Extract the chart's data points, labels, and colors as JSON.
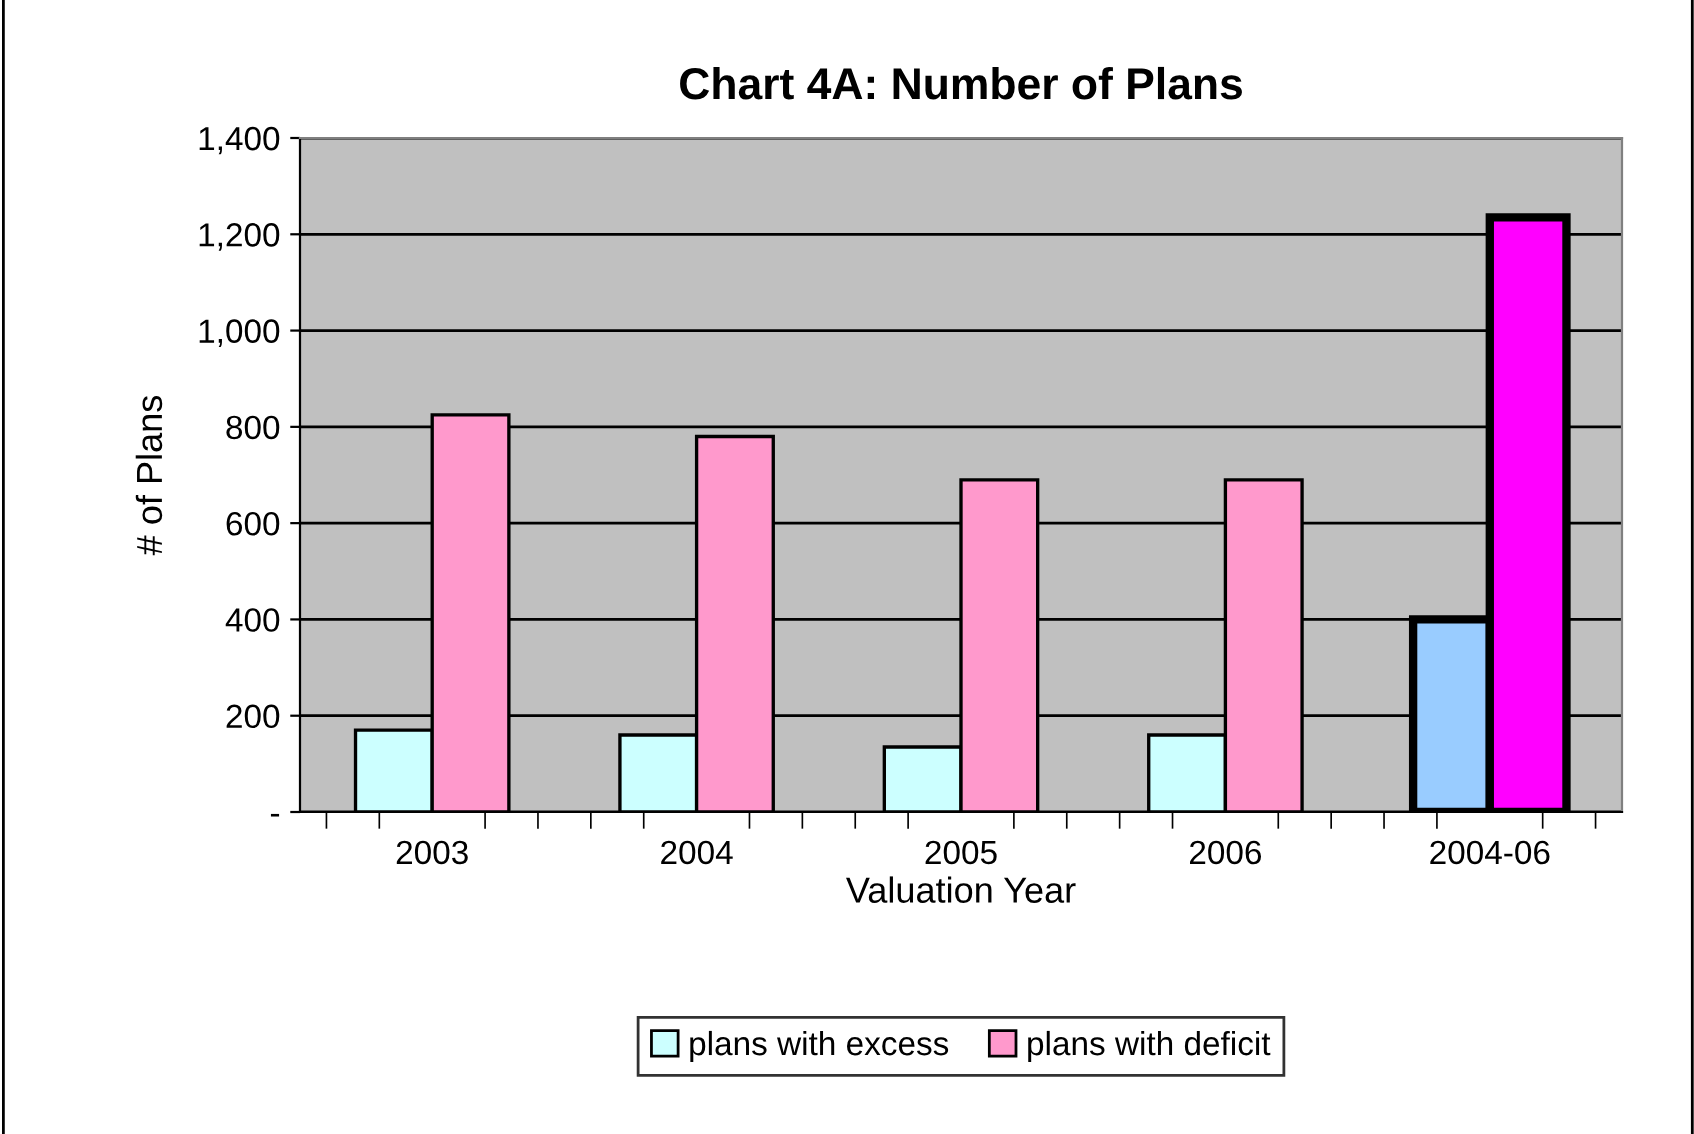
{
  "chart_data": {
    "type": "bar",
    "title": "Chart 4A: Number of Plans",
    "xlabel": "Valuation Year",
    "ylabel": "# of Plans",
    "categories": [
      "2003",
      "2004",
      "2005",
      "2006",
      "2004-06"
    ],
    "series": [
      {
        "name": "plans with excess",
        "color": "#ccffff",
        "colors": [
          "#ccffff",
          "#ccffff",
          "#ccffff",
          "#ccffff",
          "#99ccff"
        ],
        "values": [
          170,
          160,
          135,
          160,
          400
        ]
      },
      {
        "name": "plans with deficit",
        "color": "#ff99cc",
        "colors": [
          "#ff99cc",
          "#ff99cc",
          "#ff99cc",
          "#ff99cc",
          "#ff00ff"
        ],
        "values": [
          825,
          780,
          690,
          690,
          1235
        ]
      }
    ],
    "ylim": [
      0,
      1400
    ],
    "yticks": [
      {
        "value": 0,
        "label": "-"
      },
      {
        "value": 200,
        "label": "200"
      },
      {
        "value": 400,
        "label": "400"
      },
      {
        "value": 600,
        "label": "600"
      },
      {
        "value": 800,
        "label": "800"
      },
      {
        "value": 1000,
        "label": "1,000"
      },
      {
        "value": 1200,
        "label": "1,200"
      },
      {
        "value": 1400,
        "label": "1,400"
      }
    ],
    "grid": "y",
    "legend": "bottom"
  }
}
